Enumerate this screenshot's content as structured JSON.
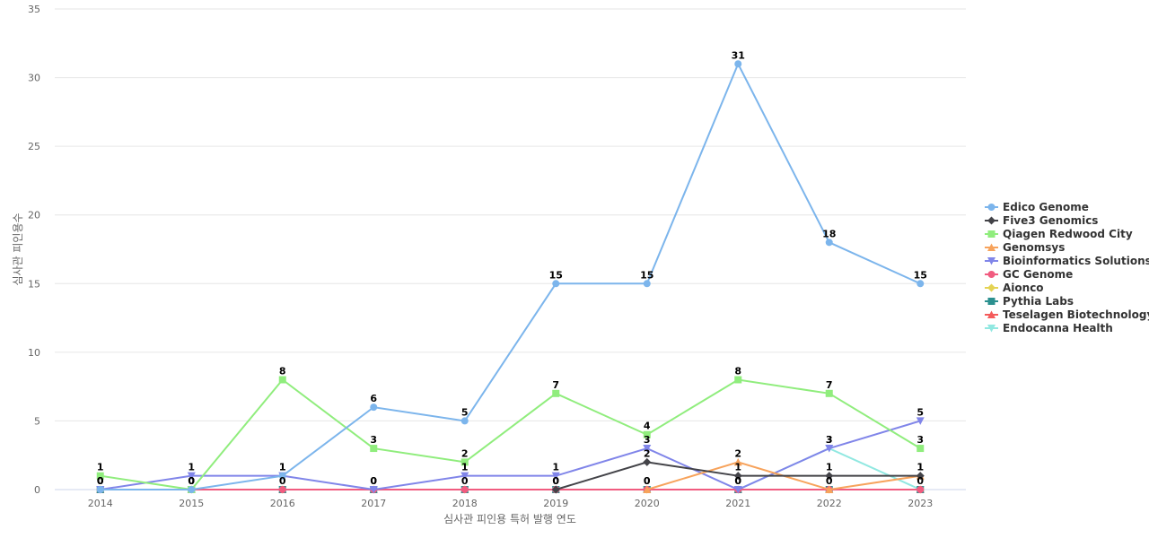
{
  "chart_data": {
    "type": "line",
    "title": "",
    "xlabel": "심사관 피인용 특허 발행 연도",
    "ylabel": "심사관 피인용수",
    "ylim": [
      0,
      35
    ],
    "yticks": [
      "0",
      "5",
      "10",
      "15",
      "20",
      "25",
      "30",
      "35"
    ],
    "grid": true,
    "legend_position": "right",
    "categories": [
      "2014",
      "2015",
      "2016",
      "2017",
      "2018",
      "2019",
      "2020",
      "2021",
      "2022",
      "2023"
    ],
    "series": [
      {
        "name": "Edico Genome",
        "color": "#7cb5ec",
        "marker": "circle",
        "values": [
          0,
          0,
          1,
          6,
          5,
          15,
          15,
          31,
          18,
          15
        ],
        "labeled": true
      },
      {
        "name": "Five3 Genomics",
        "color": "#434348",
        "marker": "diamond",
        "values": [
          null,
          null,
          null,
          null,
          null,
          0,
          2,
          1,
          1,
          1
        ],
        "labeled": true
      },
      {
        "name": "Qiagen Redwood City",
        "color": "#90ed7d",
        "marker": "square",
        "values": [
          1,
          0,
          8,
          3,
          2,
          7,
          4,
          8,
          7,
          3
        ],
        "labeled": true
      },
      {
        "name": "Genomsys",
        "color": "#f7a35c",
        "marker": "triangle",
        "values": [
          null,
          null,
          null,
          null,
          null,
          null,
          0,
          2,
          0,
          1
        ],
        "labeled": true
      },
      {
        "name": "Bioinformatics Solutions",
        "color": "#8085e9",
        "marker": "triangle-down",
        "values": [
          0,
          1,
          1,
          0,
          1,
          1,
          3,
          0,
          3,
          5
        ],
        "labeled": true
      },
      {
        "name": "GC Genome",
        "color": "#f15c80",
        "marker": "circle",
        "values": [
          0,
          0,
          0,
          0,
          0,
          0,
          0,
          0,
          0,
          0
        ],
        "labeled": false
      },
      {
        "name": "Aionco",
        "color": "#e4d354",
        "marker": "diamond",
        "values": [
          0,
          0,
          0,
          0,
          0,
          0,
          0,
          0,
          0,
          0
        ],
        "labeled": false
      },
      {
        "name": "Pythia Labs",
        "color": "#2b908f",
        "marker": "square",
        "values": [
          0,
          0,
          0,
          0,
          0,
          0,
          0,
          0,
          0,
          0
        ],
        "labeled": false
      },
      {
        "name": "Teselagen Biotechnology",
        "color": "#f45b5b",
        "marker": "triangle",
        "values": [
          0,
          0,
          0,
          0,
          0,
          0,
          0,
          0,
          0,
          0
        ],
        "labeled": false
      },
      {
        "name": "Endocanna Health",
        "color": "#91e8e1",
        "marker": "triangle-down",
        "values": [
          0,
          0,
          0,
          0,
          0,
          0,
          0,
          0,
          3,
          0
        ],
        "labeled": true
      }
    ]
  }
}
